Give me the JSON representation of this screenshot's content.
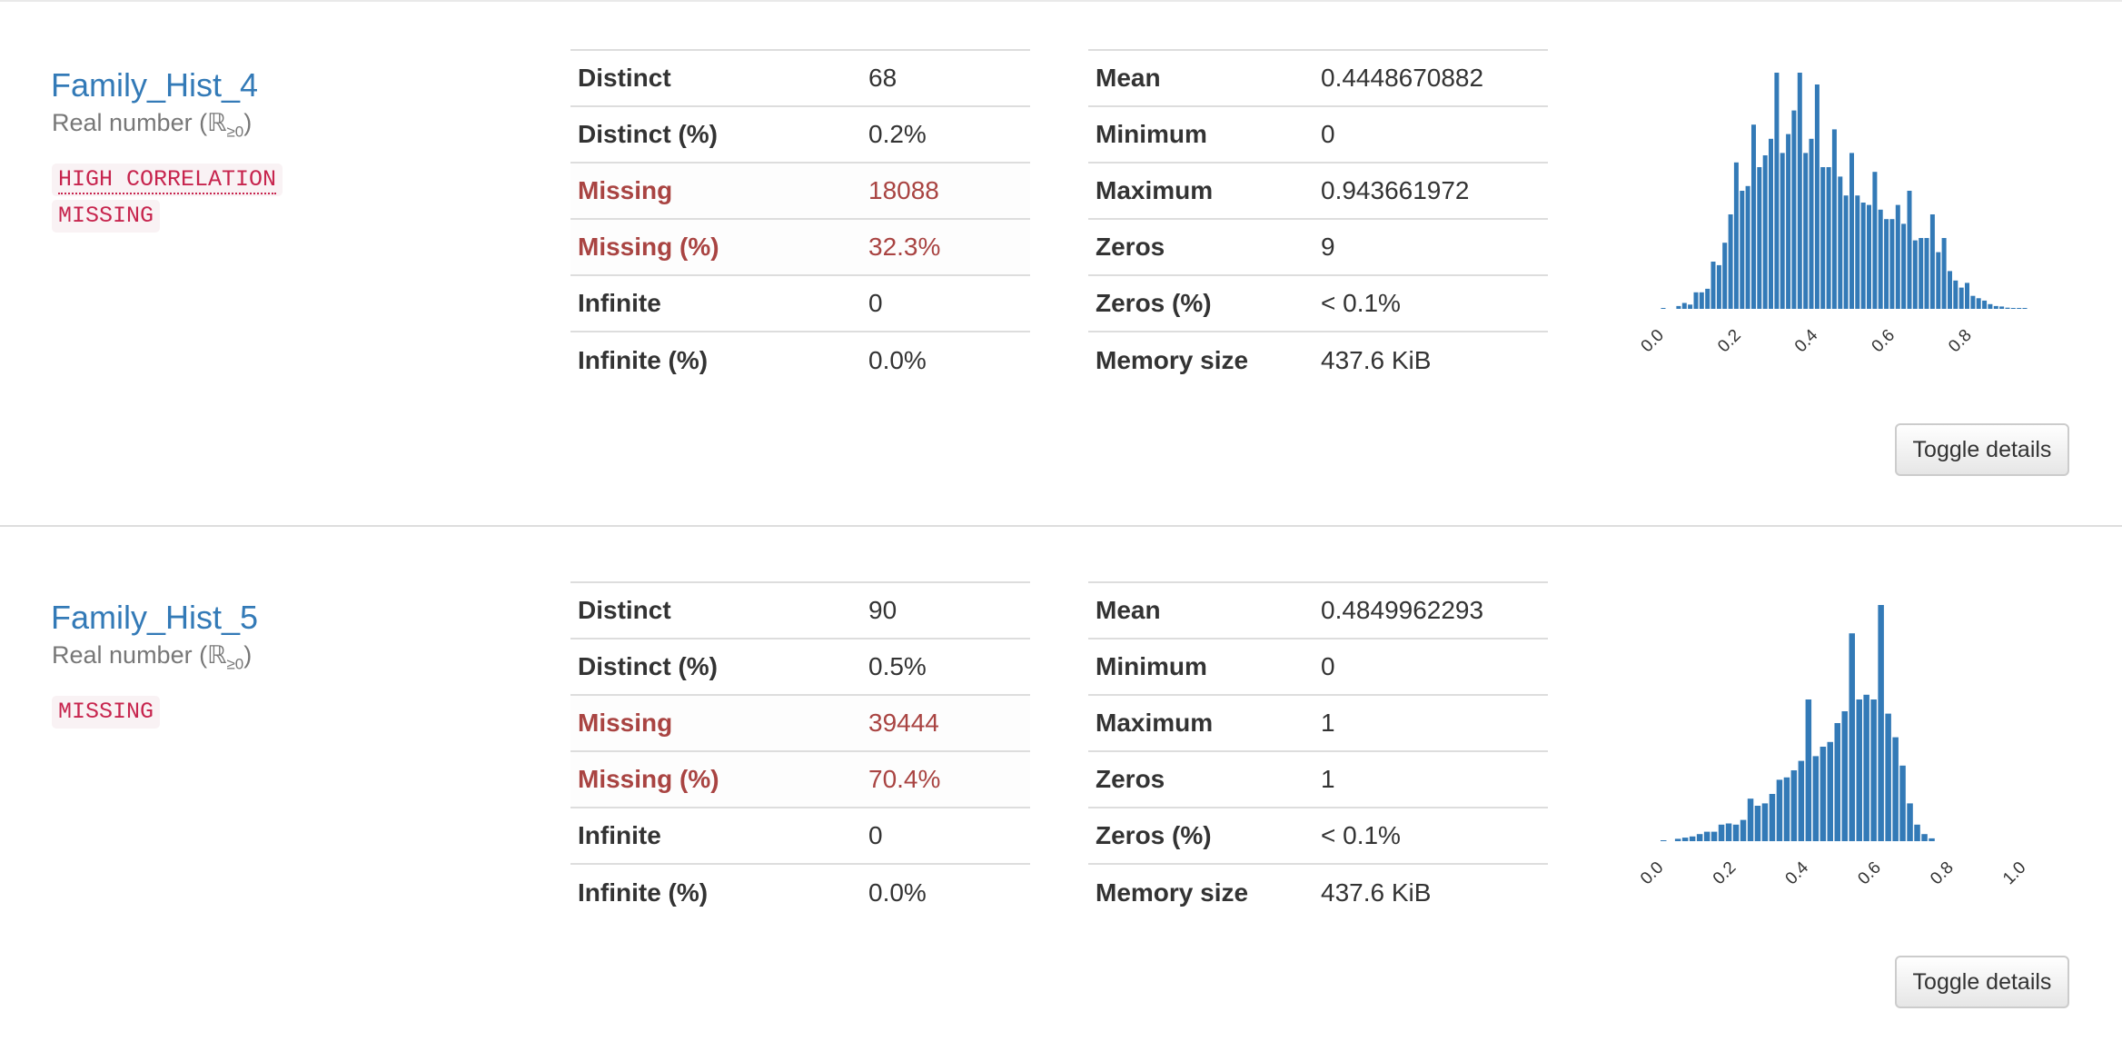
{
  "variables": [
    {
      "name": "Family_Hist_4",
      "type_prefix": "Real number (ℝ",
      "type_sub": "≥0",
      "type_suffix": ")",
      "alerts": [
        "HIGH CORRELATION",
        "MISSING"
      ],
      "stats_left": [
        {
          "label": "Distinct",
          "value": "68"
        },
        {
          "label": "Distinct (%)",
          "value": "0.2%"
        },
        {
          "label": "Missing",
          "value": "18088"
        },
        {
          "label": "Missing (%)",
          "value": "32.3%"
        },
        {
          "label": "Infinite",
          "value": "0"
        },
        {
          "label": "Infinite (%)",
          "value": "0.0%"
        }
      ],
      "stats_right": [
        {
          "label": "Mean",
          "value": "0.4448670882"
        },
        {
          "label": "Minimum",
          "value": "0"
        },
        {
          "label": "Maximum",
          "value": "0.943661972"
        },
        {
          "label": "Zeros",
          "value": "9"
        },
        {
          "label": "Zeros (%)",
          "value": "< 0.1%"
        },
        {
          "label": "Memory size",
          "value": "437.6 KiB"
        }
      ],
      "toggle_label": "Toggle details",
      "chart_data": {
        "type": "bar",
        "x_domain": [
          -0.02,
          0.96
        ],
        "x_ticks": [
          "0.0",
          "0.2",
          "0.4",
          "0.6",
          "0.8"
        ],
        "bar_color": "#337ab7",
        "grid": false,
        "bins": [
          [
            0.0,
            0.004
          ],
          [
            0.04,
            0.012
          ],
          [
            0.055,
            0.025
          ],
          [
            0.07,
            0.018
          ],
          [
            0.085,
            0.07
          ],
          [
            0.1,
            0.07
          ],
          [
            0.115,
            0.085
          ],
          [
            0.13,
            0.2
          ],
          [
            0.145,
            0.185
          ],
          [
            0.16,
            0.28
          ],
          [
            0.175,
            0.4
          ],
          [
            0.19,
            0.62
          ],
          [
            0.205,
            0.5
          ],
          [
            0.22,
            0.52
          ],
          [
            0.235,
            0.78
          ],
          [
            0.25,
            0.6
          ],
          [
            0.265,
            0.65
          ],
          [
            0.28,
            0.72
          ],
          [
            0.295,
            1.0
          ],
          [
            0.31,
            0.66
          ],
          [
            0.325,
            0.74
          ],
          [
            0.34,
            0.84
          ],
          [
            0.355,
            1.0
          ],
          [
            0.37,
            0.66
          ],
          [
            0.385,
            0.72
          ],
          [
            0.4,
            0.95
          ],
          [
            0.415,
            0.6
          ],
          [
            0.43,
            0.6
          ],
          [
            0.445,
            0.76
          ],
          [
            0.46,
            0.56
          ],
          [
            0.475,
            0.48
          ],
          [
            0.49,
            0.66
          ],
          [
            0.505,
            0.48
          ],
          [
            0.52,
            0.45
          ],
          [
            0.535,
            0.44
          ],
          [
            0.55,
            0.58
          ],
          [
            0.565,
            0.42
          ],
          [
            0.58,
            0.38
          ],
          [
            0.595,
            0.38
          ],
          [
            0.61,
            0.44
          ],
          [
            0.625,
            0.36
          ],
          [
            0.64,
            0.5
          ],
          [
            0.655,
            0.29
          ],
          [
            0.67,
            0.3
          ],
          [
            0.685,
            0.3
          ],
          [
            0.7,
            0.4
          ],
          [
            0.715,
            0.24
          ],
          [
            0.73,
            0.3
          ],
          [
            0.745,
            0.16
          ],
          [
            0.76,
            0.12
          ],
          [
            0.775,
            0.09
          ],
          [
            0.79,
            0.11
          ],
          [
            0.805,
            0.055
          ],
          [
            0.82,
            0.045
          ],
          [
            0.835,
            0.035
          ],
          [
            0.85,
            0.02
          ],
          [
            0.865,
            0.012
          ],
          [
            0.88,
            0.01
          ],
          [
            0.895,
            0.005
          ],
          [
            0.91,
            0.004
          ],
          [
            0.925,
            0.003
          ],
          [
            0.94,
            0.002
          ]
        ]
      }
    },
    {
      "name": "Family_Hist_5",
      "type_prefix": "Real number (ℝ",
      "type_sub": "≥0",
      "type_suffix": ")",
      "alerts": [
        "MISSING"
      ],
      "stats_left": [
        {
          "label": "Distinct",
          "value": "90"
        },
        {
          "label": "Distinct (%)",
          "value": "0.5%"
        },
        {
          "label": "Missing",
          "value": "39444"
        },
        {
          "label": "Missing (%)",
          "value": "70.4%"
        },
        {
          "label": "Infinite",
          "value": "0"
        },
        {
          "label": "Infinite (%)",
          "value": "0.0%"
        }
      ],
      "stats_right": [
        {
          "label": "Mean",
          "value": "0.4849962293"
        },
        {
          "label": "Minimum",
          "value": "0"
        },
        {
          "label": "Maximum",
          "value": "1"
        },
        {
          "label": "Zeros",
          "value": "1"
        },
        {
          "label": "Zeros (%)",
          "value": "< 0.1%"
        },
        {
          "label": "Memory size",
          "value": "437.6 KiB"
        }
      ],
      "toggle_label": "Toggle details",
      "chart_data": {
        "type": "bar",
        "x_domain": [
          -0.02,
          1.02
        ],
        "x_ticks": [
          "0.0",
          "0.2",
          "0.4",
          "0.6",
          "0.8",
          "1.0"
        ],
        "bar_color": "#337ab7",
        "grid": false,
        "bins": [
          [
            0.0,
            0.003
          ],
          [
            0.04,
            0.01
          ],
          [
            0.06,
            0.015
          ],
          [
            0.08,
            0.02
          ],
          [
            0.1,
            0.03
          ],
          [
            0.12,
            0.04
          ],
          [
            0.14,
            0.04
          ],
          [
            0.16,
            0.07
          ],
          [
            0.18,
            0.075
          ],
          [
            0.2,
            0.07
          ],
          [
            0.22,
            0.09
          ],
          [
            0.24,
            0.18
          ],
          [
            0.26,
            0.15
          ],
          [
            0.28,
            0.16
          ],
          [
            0.3,
            0.2
          ],
          [
            0.32,
            0.26
          ],
          [
            0.34,
            0.27
          ],
          [
            0.36,
            0.3
          ],
          [
            0.38,
            0.34
          ],
          [
            0.4,
            0.6
          ],
          [
            0.42,
            0.36
          ],
          [
            0.44,
            0.4
          ],
          [
            0.46,
            0.42
          ],
          [
            0.48,
            0.5
          ],
          [
            0.5,
            0.55
          ],
          [
            0.52,
            0.88
          ],
          [
            0.54,
            0.6
          ],
          [
            0.56,
            0.62
          ],
          [
            0.58,
            0.6
          ],
          [
            0.6,
            1.0
          ],
          [
            0.62,
            0.54
          ],
          [
            0.64,
            0.44
          ],
          [
            0.66,
            0.32
          ],
          [
            0.68,
            0.16
          ],
          [
            0.7,
            0.07
          ],
          [
            0.72,
            0.03
          ],
          [
            0.74,
            0.012
          ]
        ]
      }
    }
  ]
}
